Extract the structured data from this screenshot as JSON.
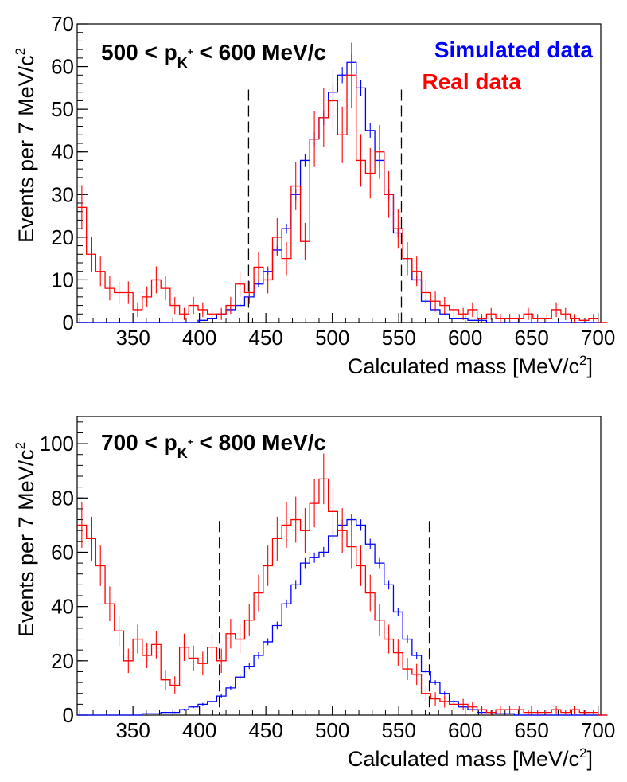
{
  "chart_data": [
    {
      "type": "histogram",
      "title_text": {
        "main": "500 < p",
        "sub": "K",
        "sup": "+",
        "rest": " < 600 MeV/c"
      },
      "legend": [
        {
          "label": "Simulated data",
          "color": "#0000ff"
        },
        {
          "label": "Real data",
          "color": "#ff0000"
        }
      ],
      "xlabel": "Calculated mass [MeV/c",
      "xlabel_sup": "2",
      "xlabel_end": "]",
      "ylabel": "Events per 7 MeV/c",
      "ylabel_sup": "2",
      "x_range": [
        308,
        702
      ],
      "y_range": [
        0,
        70
      ],
      "x_ticks": [
        350,
        400,
        450,
        500,
        550,
        600,
        650,
        700
      ],
      "y_ticks": [
        0,
        10,
        20,
        30,
        40,
        50,
        60,
        70
      ],
      "cut_lines": [
        437,
        552
      ],
      "bin_width": 7,
      "bin_start": 308,
      "series": [
        {
          "name": "Simulated data",
          "color": "#0000ff",
          "values": [
            0,
            0,
            0,
            0,
            0,
            0,
            0,
            0,
            0,
            0,
            0,
            0,
            0,
            0.5,
            1,
            2,
            3,
            4,
            6,
            9,
            12,
            17,
            22,
            30,
            38,
            43,
            48,
            54,
            58,
            61,
            55,
            45,
            38,
            30,
            21,
            15,
            10,
            5,
            3,
            2,
            1,
            1,
            0.5,
            0.5,
            0,
            0,
            0,
            0,
            0,
            0,
            0,
            0,
            0,
            0,
            0,
            0,
            0
          ]
        },
        {
          "name": "Real data",
          "color": "#ff0000",
          "values": [
            27,
            16,
            12,
            8,
            7,
            7,
            3,
            6,
            10,
            8,
            4,
            2,
            4,
            3,
            2,
            2,
            4,
            9,
            7,
            13,
            10,
            20,
            15,
            32,
            19,
            43,
            48,
            52,
            44,
            58,
            38,
            35,
            40,
            30,
            22,
            15,
            12,
            7,
            5,
            4,
            3,
            2,
            3,
            1,
            2,
            1,
            1,
            1,
            2,
            1,
            1,
            3,
            2,
            1,
            0.5,
            1,
            0
          ]
        }
      ]
    },
    {
      "type": "histogram",
      "title_text": {
        "main": "700 < p",
        "sub": "K",
        "sup": "+",
        "rest": " < 800 MeV/c"
      },
      "xlabel": "Calculated mass [MeV/c",
      "xlabel_sup": "2",
      "xlabel_end": "]",
      "ylabel": "Events per 7 MeV/c",
      "ylabel_sup": "2",
      "x_range": [
        308,
        702
      ],
      "y_range": [
        0,
        110
      ],
      "x_ticks": [
        350,
        400,
        450,
        500,
        550,
        600,
        650,
        700
      ],
      "y_ticks": [
        0,
        20,
        40,
        60,
        80,
        100
      ],
      "cut_lines": [
        415,
        573
      ],
      "bin_width": 7,
      "bin_start": 308,
      "series": [
        {
          "name": "Simulated data",
          "color": "#0000ff",
          "values": [
            0,
            0,
            0,
            0,
            0,
            0,
            0,
            0.5,
            0.5,
            1,
            1,
            2,
            3,
            4,
            5,
            7,
            10,
            14,
            18,
            22,
            27,
            33,
            41,
            48,
            56,
            58,
            60,
            66,
            70,
            72,
            70,
            63,
            56,
            48,
            38,
            28,
            22,
            16,
            12,
            8,
            5,
            3,
            2,
            1,
            1,
            0.5,
            0.5,
            0,
            0,
            0,
            0,
            0,
            0,
            0,
            0,
            0,
            0
          ]
        },
        {
          "name": "Real data",
          "color": "#ff0000",
          "values": [
            70,
            65,
            55,
            41,
            31,
            20,
            28,
            22,
            26,
            13,
            11,
            25,
            21,
            19,
            25,
            20,
            30,
            28,
            35,
            45,
            55,
            65,
            70,
            72,
            68,
            78,
            87,
            75,
            68,
            62,
            55,
            45,
            35,
            28,
            23,
            17,
            15,
            8,
            6,
            5,
            4,
            4,
            3,
            2,
            1,
            2,
            2,
            2,
            1,
            1,
            1,
            2,
            1,
            2,
            1,
            1,
            0
          ]
        }
      ]
    }
  ]
}
